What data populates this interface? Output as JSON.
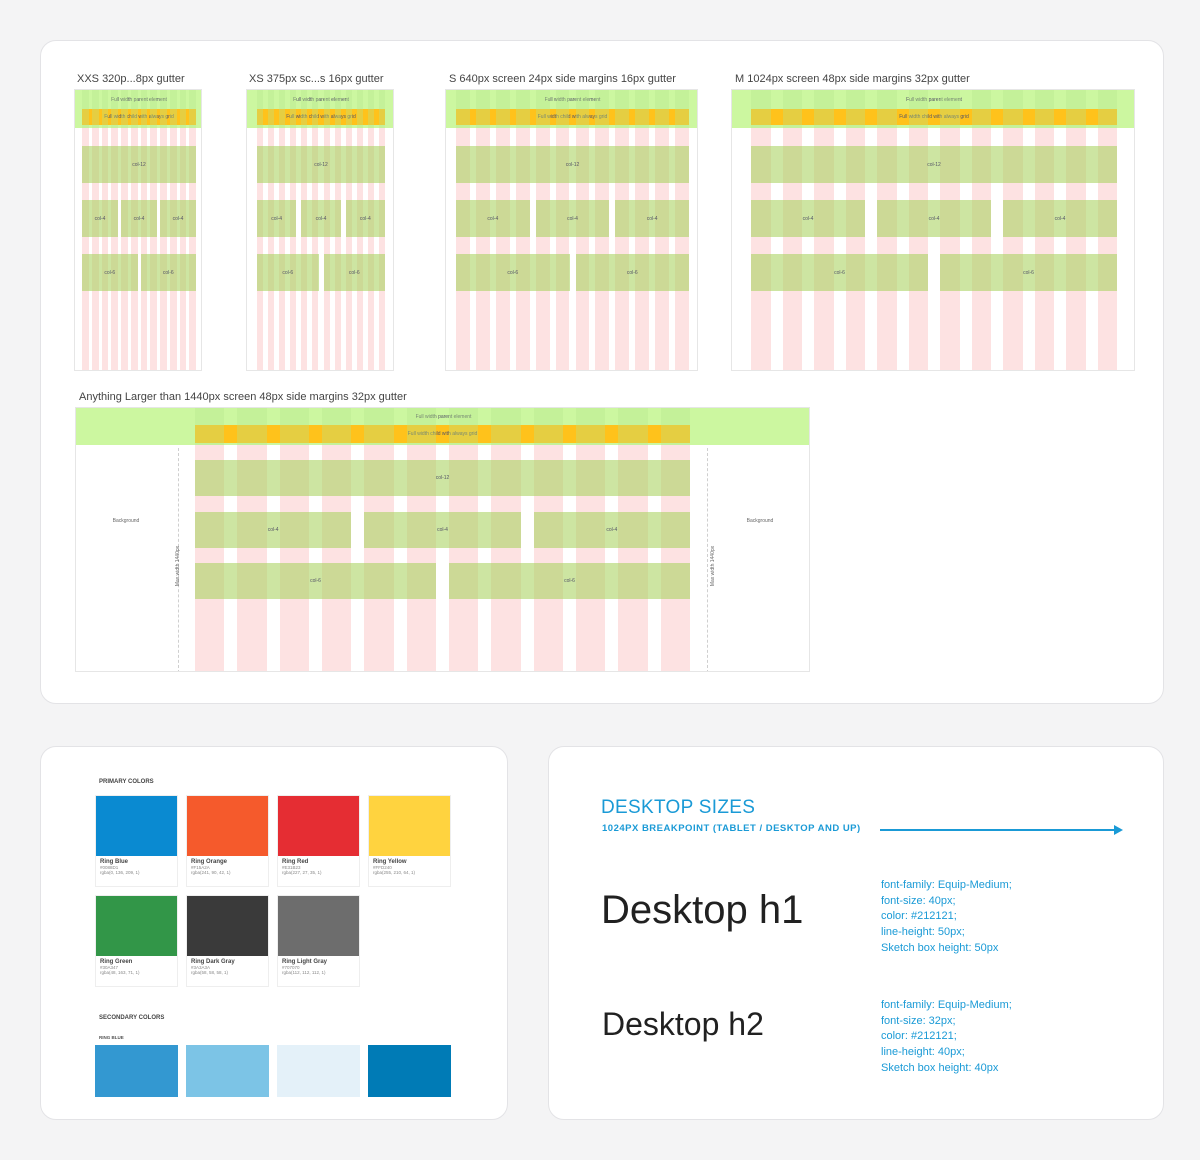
{
  "grid_card": {
    "frames": [
      {
        "label": "XXS 320p...8px gutter",
        "cols": 12
      },
      {
        "label": "XS 375px sc...s 16px gutter",
        "cols": 12
      },
      {
        "label": "S 640px screen 24px side margins 16px gutter",
        "cols": 12
      },
      {
        "label": "M 1024px screen 48px side margins 32px gutter",
        "cols": 12
      }
    ],
    "large": {
      "label": "Anything Larger than 1440px screen 48px side margins 32px gutter",
      "background_text": "Background",
      "max_width_text": "Max width 1440px"
    },
    "band_labels": {
      "parent": "Full width parent element",
      "child": "Full width child with always grid"
    },
    "row_labels": {
      "col12": "col-12",
      "col4": "col-4",
      "col6": "col-6"
    }
  },
  "colors_card": {
    "primary_title": "PRIMARY COLORS",
    "primary": [
      {
        "name": "Ring Blue",
        "hex": "#0088D1",
        "rgb": "rgba(0, 136, 209, 1)",
        "color": "#0a8ad1"
      },
      {
        "name": "Ring Orange",
        "hex": "#F15A2A",
        "rgb": "rgba(241, 90, 42, 1)",
        "color": "#f55a2c"
      },
      {
        "name": "Ring Red",
        "hex": "#E31B23",
        "rgb": "rgba(227, 27, 35, 1)",
        "color": "#e52d33"
      },
      {
        "name": "Ring Yellow",
        "hex": "#FFD240",
        "rgb": "rgba(255, 210, 64, 1)",
        "color": "#ffd33f"
      },
      {
        "name": "Ring Green",
        "hex": "#30A347",
        "rgb": "rgba(48, 163, 71, 1)",
        "color": "#329648"
      },
      {
        "name": "Ring Dark Gray",
        "hex": "#3A3A3A",
        "rgb": "rgba(58, 58, 58, 1)",
        "color": "#3a3a3a"
      },
      {
        "name": "Ring Light Gray",
        "hex": "#707070",
        "rgb": "rgba(112, 112, 112, 1)",
        "color": "#6d6d6d"
      }
    ],
    "secondary_title": "SECONDARY COLORS",
    "secondary_sub": "RING BLUE",
    "secondary": [
      "#3398d1",
      "#7cc4e6",
      "#e4f1f9",
      "#007bb6"
    ]
  },
  "desktop_card": {
    "title": "DESKTOP SIZES",
    "subtitle": "1024PX BREAKPOINT (TABLET / DESKTOP AND UP)",
    "h1": {
      "sample": "Desktop h1",
      "specs": [
        "font-family: Equip-Medium;",
        "font-size: 40px;",
        "color: #212121;",
        "line-height: 50px;",
        "Sketch box height: 50px"
      ]
    },
    "h2": {
      "sample": "Desktop h2",
      "specs": [
        "font-family: Equip-Medium;",
        "font-size: 32px;",
        "color: #212121;",
        "line-height: 40px;",
        "Sketch box height: 40px"
      ]
    },
    "accent": "#1a9ad6"
  }
}
